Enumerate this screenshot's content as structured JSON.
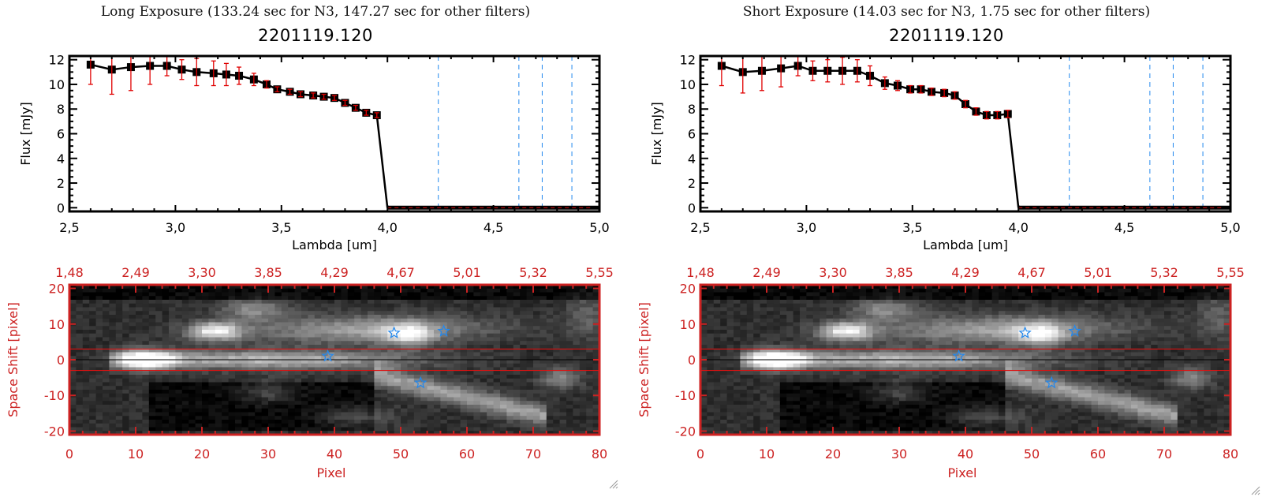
{
  "panels": [
    {
      "id": "long",
      "title": "Long Exposure (133.24 sec for N3, 147.27 sec for other filters)",
      "object_id": "2201119.120"
    },
    {
      "id": "short",
      "title": "Short Exposure (14.03 sec for N3, 1.75 sec for other filters)",
      "object_id": "2201119.120"
    }
  ],
  "colors": {
    "line": "#000000",
    "errorbar": "#e00000",
    "filter_lines": "#2288ee",
    "image_axes": "#cc2222",
    "extraction_box": "#dd1111",
    "stars": "#2288ee",
    "zero_line": "#dd1111"
  },
  "chart_data": [
    {
      "panel": "long",
      "type": "line",
      "title": "2201119.120",
      "xlabel": "Lambda [um]",
      "ylabel": "Flux [mJy]",
      "xlim": [
        2.5,
        5.0
      ],
      "ylim": [
        -0.3,
        12.3
      ],
      "xticks": [
        2.5,
        3.0,
        3.5,
        4.0,
        4.5,
        5.0
      ],
      "xtick_labels": [
        "2,5",
        "3,0",
        "3,5",
        "4,0",
        "4,5",
        "5,0"
      ],
      "yticks": [
        0,
        2,
        4,
        6,
        8,
        10,
        12
      ],
      "ytick_labels": [
        "0",
        "2",
        "4",
        "6",
        "8",
        "10",
        "12"
      ],
      "series": [
        {
          "name": "spectrum",
          "x": [
            2.6,
            2.7,
            2.79,
            2.88,
            2.96,
            3.03,
            3.1,
            3.18,
            3.24,
            3.3,
            3.37,
            3.43,
            3.48,
            3.54,
            3.59,
            3.65,
            3.7,
            3.75,
            3.8,
            3.85,
            3.9,
            3.95
          ],
          "y": [
            11.6,
            11.2,
            11.4,
            11.5,
            11.5,
            11.2,
            11.0,
            10.9,
            10.8,
            10.7,
            10.4,
            10.0,
            9.6,
            9.4,
            9.2,
            9.1,
            9.0,
            8.9,
            8.5,
            8.1,
            7.7,
            7.5
          ],
          "yerr": [
            1.6,
            2.0,
            1.9,
            1.5,
            0.8,
            0.8,
            1.1,
            1.0,
            0.9,
            0.7,
            0.5,
            0.3,
            0.2,
            0.2,
            0.2,
            0.2,
            0.2,
            0.2,
            0.2,
            0.2,
            0.2,
            0.2
          ]
        },
        {
          "name": "zero-flux",
          "x": [
            4.0,
            4.05,
            4.1,
            4.15,
            4.2,
            4.25,
            4.3,
            4.35,
            4.4,
            4.45,
            4.5,
            4.55,
            4.6,
            4.65,
            4.7,
            4.75,
            4.8,
            4.85,
            4.9,
            4.95,
            5.0
          ],
          "y": [
            0,
            0,
            0,
            0,
            0,
            0,
            0,
            0,
            0,
            0,
            0,
            0,
            0,
            0,
            0,
            0,
            0,
            0,
            0,
            0,
            0
          ]
        }
      ],
      "filter_lines": [
        4.24,
        4.62,
        4.73,
        4.87
      ]
    },
    {
      "panel": "short",
      "type": "line",
      "title": "2201119.120",
      "xlabel": "Lambda [um]",
      "ylabel": "Flux [mJy]",
      "xlim": [
        2.5,
        5.0
      ],
      "ylim": [
        -0.3,
        12.3
      ],
      "xticks": [
        2.5,
        3.0,
        3.5,
        4.0,
        4.5,
        5.0
      ],
      "xtick_labels": [
        "2,5",
        "3,0",
        "3,5",
        "4,0",
        "4,5",
        "5,0"
      ],
      "yticks": [
        0,
        2,
        4,
        6,
        8,
        10,
        12
      ],
      "ytick_labels": [
        "0",
        "2",
        "4",
        "6",
        "8",
        "10",
        "12"
      ],
      "series": [
        {
          "name": "spectrum",
          "x": [
            2.6,
            2.7,
            2.79,
            2.88,
            2.96,
            3.03,
            3.1,
            3.17,
            3.24,
            3.3,
            3.37,
            3.43,
            3.49,
            3.54,
            3.59,
            3.65,
            3.7,
            3.75,
            3.8,
            3.85,
            3.9,
            3.95
          ],
          "y": [
            11.5,
            11.0,
            11.1,
            11.3,
            11.5,
            11.1,
            11.1,
            11.1,
            11.1,
            10.7,
            10.1,
            9.9,
            9.6,
            9.6,
            9.4,
            9.3,
            9.1,
            8.4,
            7.8,
            7.5,
            7.5,
            7.6
          ],
          "yerr": [
            1.6,
            1.7,
            1.6,
            1.5,
            0.8,
            0.8,
            0.9,
            1.1,
            0.9,
            0.8,
            0.5,
            0.4,
            0.3,
            0.3,
            0.3,
            0.3,
            0.3,
            0.3,
            0.3,
            0.3,
            0.3,
            0.3
          ]
        },
        {
          "name": "zero-flux",
          "x": [
            4.0,
            4.05,
            4.1,
            4.15,
            4.2,
            4.25,
            4.3,
            4.35,
            4.4,
            4.45,
            4.5,
            4.55,
            4.6,
            4.65,
            4.7,
            4.75,
            4.8,
            4.85,
            4.9,
            4.95,
            5.0
          ],
          "y": [
            0,
            0,
            0,
            0,
            0,
            0,
            0,
            0,
            0,
            0,
            0,
            0,
            0,
            0,
            0,
            0,
            0,
            0,
            0,
            0,
            0
          ]
        }
      ],
      "filter_lines": [
        4.24,
        4.62,
        4.73,
        4.87
      ]
    },
    {
      "panel": "long",
      "type": "heatmap",
      "xlabel": "Pixel",
      "ylabel": "Space Shift [pixel]",
      "xlim": [
        0,
        80
      ],
      "ylim": [
        -21,
        21
      ],
      "xticks": [
        0,
        10,
        20,
        30,
        40,
        50,
        60,
        70,
        80
      ],
      "xtick_labels": [
        "0",
        "10",
        "20",
        "30",
        "40",
        "50",
        "60",
        "70",
        "80"
      ],
      "yticks": [
        -20,
        -10,
        0,
        10,
        20
      ],
      "ytick_labels": [
        "-20",
        "-10",
        "0",
        "10",
        "20"
      ],
      "top_axis_label_positions": [
        0,
        10,
        20,
        30,
        40,
        50,
        60,
        70,
        80
      ],
      "top_axis_labels": [
        "1,48",
        "2,49",
        "3,30",
        "3,85",
        "4,29",
        "4,67",
        "5,01",
        "5,32",
        "5,55"
      ],
      "extraction_box_y": [
        -3,
        3
      ],
      "center_line_y": 0,
      "stars": [
        {
          "x": 39,
          "y": 1
        },
        {
          "x": 49,
          "y": 7.5
        },
        {
          "x": 56.5,
          "y": 8
        },
        {
          "x": 53,
          "y": -6.5
        }
      ]
    },
    {
      "panel": "short",
      "type": "heatmap",
      "xlabel": "Pixel",
      "ylabel": "Space Shift [pixel]",
      "xlim": [
        0,
        80
      ],
      "ylim": [
        -21,
        21
      ],
      "xticks": [
        0,
        10,
        20,
        30,
        40,
        50,
        60,
        70,
        80
      ],
      "xtick_labels": [
        "0",
        "10",
        "20",
        "30",
        "40",
        "50",
        "60",
        "70",
        "80"
      ],
      "yticks": [
        -20,
        -10,
        0,
        10,
        20
      ],
      "ytick_labels": [
        "-20",
        "-10",
        "0",
        "10",
        "20"
      ],
      "top_axis_label_positions": [
        0,
        10,
        20,
        30,
        40,
        50,
        60,
        70,
        80
      ],
      "top_axis_labels": [
        "1,48",
        "2,49",
        "3,30",
        "3,85",
        "4,29",
        "4,67",
        "5,01",
        "5,32",
        "5,55"
      ],
      "extraction_box_y": [
        -3,
        3
      ],
      "center_line_y": 0,
      "stars": [
        {
          "x": 39,
          "y": 1
        },
        {
          "x": 49,
          "y": 7.5
        },
        {
          "x": 56.5,
          "y": 8
        },
        {
          "x": 53,
          "y": -6.5
        }
      ]
    }
  ]
}
